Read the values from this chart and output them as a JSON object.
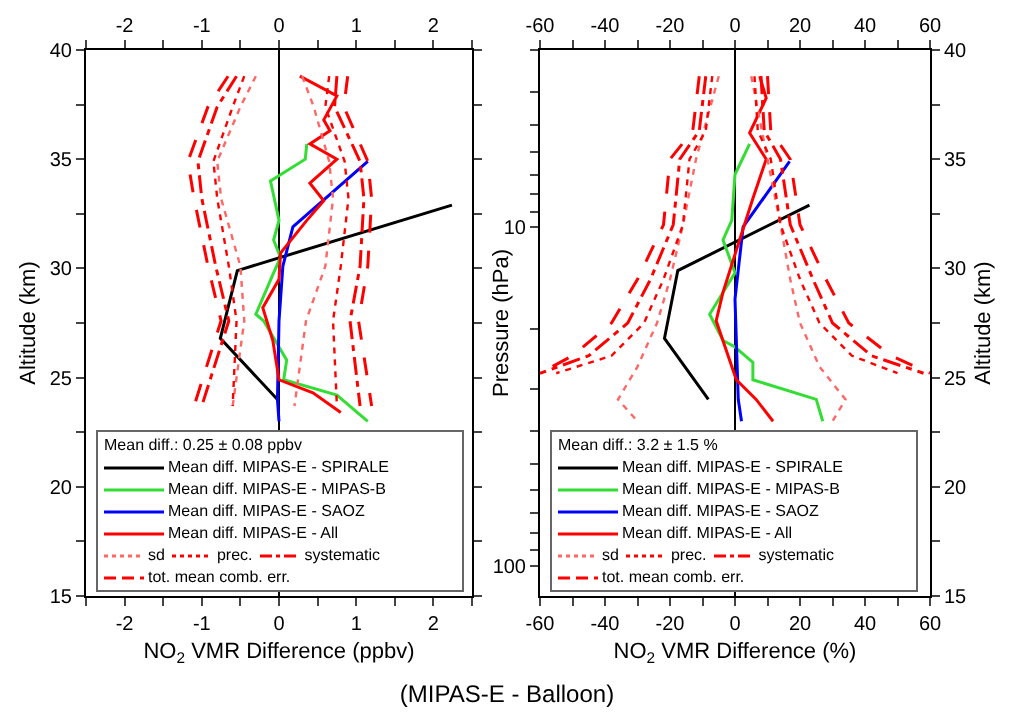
{
  "chart_data": [
    {
      "type": "line",
      "xlabel": "NO$_{2}$ VMR Difference (ppbv)",
      "ylabel": "Altitude (km)",
      "legend_title": "Mean diff.: 0.25 ± 0.08 ppbv",
      "legend": "bottom left",
      "marker": "none",
      "annotations": [
        "(MIPAS-E - Balloon)"
      ],
      "xlim": [
        -2.5,
        2.5
      ],
      "xticks": [
        {
          "value": -2.5,
          "label": null
        },
        -2,
        {
          "value": -1.5,
          "label": null
        },
        -1,
        {
          "value": -0.5,
          "label": null
        },
        0,
        {
          "value": 0.5,
          "label": null
        },
        1,
        {
          "value": 1.5,
          "label": null
        },
        2,
        {
          "value": 2.5,
          "label": null
        }
      ],
      "x2lim": [
        -2.5,
        2.5
      ],
      "x2ticks": [
        {
          "value": -2.5,
          "label": null
        },
        -2,
        {
          "value": -1.5,
          "label": null
        },
        -1,
        {
          "value": -0.5,
          "label": null
        },
        0,
        {
          "value": 0.5,
          "label": null
        },
        1,
        {
          "value": 1.5,
          "label": null
        },
        2,
        {
          "value": 2.5,
          "label": null
        }
      ],
      "ylim": [
        15,
        40
      ],
      "yticks": [
        15,
        {
          "value": 17.5,
          "label": null
        },
        20,
        {
          "value": 22.5,
          "label": null
        },
        25,
        {
          "value": 27.5,
          "label": null
        },
        30,
        {
          "value": 32.5,
          "label": null
        },
        35,
        {
          "value": 37.5,
          "label": null
        },
        40
      ],
      "ref_lines": [
        {
          "axis": "x",
          "value": 0,
          "color": "#000000"
        }
      ],
      "series": [
        {
          "name": "Mean diff. MIPAS-E - SPIRALE",
          "color": "#000000",
          "line_style": "solid",
          "x": [
            2.24,
            -0.54,
            -0.76,
            -0.02
          ],
          "values": [
            32.9,
            29.9,
            26.8,
            24.0
          ]
        },
        {
          "name": "Mean diff. MIPAS-E - MIPAS-B",
          "color": "#33dd33",
          "line_style": "solid",
          "x": [
            0.36,
            0.34,
            -0.11,
            0.0,
            -0.07,
            0.02,
            -0.07,
            -0.3,
            -0.2,
            0.0,
            0.1,
            0.06,
            0.75,
            1.15
          ],
          "values": [
            35.7,
            35.0,
            34.0,
            32.2,
            31.3,
            30.5,
            29.8,
            27.9,
            27.6,
            26.4,
            25.8,
            24.9,
            24.2,
            23.0
          ]
        },
        {
          "name": "Mean diff. MIPAS-E - SAOZ",
          "color": "#0000ff",
          "line_style": "solid",
          "x": [
            1.15,
            0.18,
            0.05,
            0.0,
            -0.02,
            0.0
          ],
          "values": [
            34.9,
            31.9,
            30.1,
            27.6,
            24.0,
            23.0
          ]
        },
        {
          "name": "Mean diff. MIPAS-E - All",
          "color": "#ff0000",
          "line_style": "solid",
          "x": [
            0.27,
            0.75,
            0.58,
            0.66,
            0.4,
            0.75,
            0.4,
            0.58,
            0.36,
            0.02,
            0.0,
            -0.21,
            -0.08,
            0.0,
            0.44,
            0.8
          ],
          "values": [
            38.8,
            37.9,
            36.8,
            36.3,
            35.7,
            35.0,
            33.9,
            33.1,
            32.2,
            30.7,
            29.5,
            28.2,
            26.7,
            24.9,
            24.3,
            23.4
          ]
        },
        {
          "name": "sd",
          "color": "#ff6666",
          "line_style": "dotted",
          "x": [
            0.3,
            0.45,
            0.65,
            0.7,
            0.6,
            0.35,
            0.2
          ],
          "values": [
            38.8,
            37.4,
            34.9,
            33.2,
            30.1,
            27.6,
            23.7
          ]
        },
        {
          "color": "#ff6666",
          "line_style": "dotted",
          "x": [
            -0.3,
            -0.5,
            -0.8,
            -0.75,
            -0.5,
            -0.45,
            -0.6
          ],
          "values": [
            38.8,
            37.4,
            34.9,
            33.2,
            30.1,
            27.6,
            23.7
          ]
        },
        {
          "name": "prec.",
          "color": "#ff0000",
          "line_style": "dotted",
          "x": [
            0.65,
            0.6,
            0.85,
            0.9,
            0.8,
            0.7,
            0.75
          ],
          "values": [
            38.8,
            37.4,
            34.9,
            33.2,
            30.1,
            27.6,
            23.7
          ]
        },
        {
          "color": "#ff0000",
          "line_style": "dotted",
          "x": [
            -0.45,
            -0.6,
            -0.85,
            -0.8,
            -0.65,
            -0.55,
            -0.6
          ],
          "values": [
            38.8,
            37.4,
            34.9,
            33.2,
            30.1,
            27.6,
            23.7
          ]
        },
        {
          "name": "systematic",
          "color": "#ff0000",
          "line_style": "dashdot",
          "x": [
            0.75,
            0.72,
            1.05,
            1.1,
            1.05,
            0.92,
            1.05
          ],
          "values": [
            38.8,
            37.4,
            34.9,
            33.2,
            30.1,
            27.6,
            23.7
          ]
        },
        {
          "color": "#ff0000",
          "line_style": "dashdot",
          "x": [
            -0.55,
            -0.8,
            -1.05,
            -1.0,
            -0.82,
            -0.65,
            -1.0
          ],
          "values": [
            38.8,
            37.4,
            34.9,
            33.2,
            30.1,
            27.6,
            23.7
          ]
        },
        {
          "name": "tot. mean comb. err.",
          "color": "#ff0000",
          "line_style": "dashed",
          "x": [
            0.89,
            0.84,
            1.15,
            1.2,
            1.15,
            1.03,
            1.2
          ],
          "values": [
            38.8,
            37.4,
            34.9,
            33.2,
            30.1,
            27.6,
            23.7
          ]
        },
        {
          "color": "#ff0000",
          "line_style": "dashed",
          "x": [
            -0.66,
            -0.92,
            -1.18,
            -1.1,
            -0.92,
            -0.75,
            -1.1
          ],
          "values": [
            38.8,
            37.4,
            34.9,
            33.2,
            30.1,
            27.6,
            23.7
          ]
        }
      ]
    },
    {
      "type": "line",
      "xlabel": "NO$_{2}$ VMR Difference (%)",
      "ylabel": "Altitude (km)",
      "y2label": "Pressure (hPa)",
      "legend_title": "Mean diff.: 3.2 ± 1.5 %",
      "legend": "bottom left",
      "marker": "none",
      "log": "y2",
      "xlim": [
        -60,
        60
      ],
      "xticks": [
        -60,
        {
          "value": -50,
          "label": null
        },
        -40,
        {
          "value": -30,
          "label": null
        },
        -20,
        {
          "value": -10,
          "label": null
        },
        0,
        {
          "value": 10,
          "label": null
        },
        20,
        {
          "value": 30,
          "label": null
        },
        40,
        {
          "value": 50,
          "label": null
        },
        60
      ],
      "x2lim": [
        -60,
        60
      ],
      "x2ticks": [
        -60,
        {
          "value": -50,
          "label": null
        },
        -40,
        {
          "value": -30,
          "label": null
        },
        -20,
        {
          "value": -10,
          "label": null
        },
        0,
        {
          "value": 10,
          "label": null
        },
        20,
        {
          "value": 30,
          "label": null
        },
        40,
        {
          "value": 50,
          "label": null
        },
        60
      ],
      "ylim": [
        15,
        40
      ],
      "yticks": [
        15,
        {
          "value": 17.5,
          "label": null
        },
        20,
        {
          "value": 22.5,
          "label": null
        },
        25,
        {
          "value": 27.5,
          "label": null
        },
        30,
        {
          "value": 32.5,
          "label": null
        },
        35,
        {
          "value": 37.5,
          "label": null
        },
        40
      ],
      "y2lim": [
        123,
        3
      ],
      "y2ticks": [
        {
          "value": 3,
          "label": null
        },
        {
          "value": 4,
          "label": null
        },
        {
          "value": 5,
          "label": null
        },
        {
          "value": 6,
          "label": null
        },
        {
          "value": 7,
          "label": null
        },
        {
          "value": 8,
          "label": null
        },
        {
          "value": 9,
          "label": null
        },
        10,
        {
          "value": 20,
          "label": null
        },
        {
          "value": 30,
          "label": null
        },
        {
          "value": 40,
          "label": null
        },
        {
          "value": 50,
          "label": null
        },
        {
          "value": 60,
          "label": null
        },
        {
          "value": 70,
          "label": null
        },
        {
          "value": 80,
          "label": null
        },
        {
          "value": 90,
          "label": null
        },
        100
      ],
      "ref_lines": [
        {
          "axis": "x",
          "value": 0,
          "color": "#000000"
        }
      ],
      "series": [
        {
          "name": "Mean diff. MIPAS-E - SPIRALE",
          "color": "#000000",
          "line_style": "solid",
          "x": [
            22.9,
            -17.6,
            -21.7,
            -8.2
          ],
          "values": [
            32.9,
            29.9,
            26.8,
            24.0
          ]
        },
        {
          "name": "Mean diff. MIPAS-E - MIPAS-B",
          "color": "#33dd33",
          "line_style": "solid",
          "x": [
            4.5,
            0,
            -1,
            -3.7,
            0,
            -7.8,
            -3.7,
            0,
            5.5,
            5.5,
            25,
            27
          ],
          "values": [
            35.7,
            34.3,
            32.2,
            31.3,
            29.8,
            27.9,
            26.7,
            26.4,
            25.7,
            24.9,
            24.0,
            23.0
          ]
        },
        {
          "name": "Mean diff. MIPAS-E - SAOZ",
          "color": "#0000ff",
          "line_style": "solid",
          "x": [
            16.8,
            2.5,
            0,
            1,
            2
          ],
          "values": [
            34.9,
            31.9,
            28.6,
            24.0,
            23.0
          ]
        },
        {
          "name": "Mean diff. MIPAS-E - All",
          "color": "#ff0000",
          "line_style": "solid",
          "x": [
            7.6,
            9.6,
            4.5,
            9.6,
            5.5,
            1.4,
            -3.7,
            -5.8,
            0.4,
            6.5,
            11.7
          ],
          "values": [
            38.8,
            37.8,
            36.2,
            35.0,
            33.2,
            31.3,
            28.9,
            27.6,
            24.9,
            24.0,
            23.0
          ]
        },
        {
          "name": "sd",
          "color": "#ff6666",
          "line_style": "dotted",
          "x": [
            5,
            10,
            14,
            17,
            20,
            26,
            34,
            30
          ],
          "values": [
            38.8,
            35,
            32,
            29.5,
            27.5,
            25.5,
            24,
            23
          ]
        },
        {
          "color": "#ff6666",
          "line_style": "dotted",
          "x": [
            -5,
            -12,
            -16,
            -20,
            -24,
            -30,
            -36,
            -30
          ],
          "values": [
            38.8,
            35,
            32,
            29.5,
            27.5,
            25.5,
            24,
            23
          ]
        },
        {
          "name": "prec.",
          "color": "#ff0000",
          "line_style": "dotted",
          "x": [
            6,
            7,
            11,
            14,
            20,
            26,
            36,
            50
          ],
          "values": [
            38.8,
            36.3,
            35.0,
            32.0,
            29.5,
            27.5,
            26.0,
            25.2
          ]
        },
        {
          "color": "#ff0000",
          "line_style": "dotted",
          "x": [
            -7,
            -9,
            -14,
            -16,
            -22,
            -28,
            -38,
            -55
          ],
          "values": [
            38.8,
            36.3,
            35.0,
            32.0,
            29.5,
            27.5,
            26.0,
            25.2
          ]
        },
        {
          "name": "systematic",
          "color": "#ff0000",
          "line_style": "dashdot",
          "x": [
            8,
            9,
            14,
            17,
            24,
            30,
            42,
            58
          ],
          "values": [
            38.8,
            36.3,
            35.0,
            32.0,
            29.5,
            27.5,
            26.0,
            25.2
          ]
        },
        {
          "color": "#ff0000",
          "line_style": "dashdot",
          "x": [
            -9,
            -11,
            -17,
            -19,
            -26,
            -33,
            -45,
            -60
          ],
          "values": [
            38.8,
            36.3,
            35.0,
            32.0,
            29.5,
            27.5,
            26.0,
            25.2
          ]
        },
        {
          "name": "tot. mean comb. err.",
          "color": "#ff0000",
          "line_style": "dashed",
          "x": [
            10,
            11,
            17,
            20,
            28,
            35,
            48,
            60
          ],
          "values": [
            38.8,
            36.3,
            35.0,
            32.0,
            29.5,
            27.5,
            26.0,
            25.2
          ]
        },
        {
          "color": "#ff0000",
          "line_style": "dashed",
          "x": [
            -11,
            -13,
            -20,
            -22,
            -30,
            -38,
            -50,
            -60
          ],
          "values": [
            38.8,
            36.3,
            35.0,
            32.0,
            29.5,
            27.5,
            26.0,
            25.2
          ]
        }
      ]
    }
  ]
}
